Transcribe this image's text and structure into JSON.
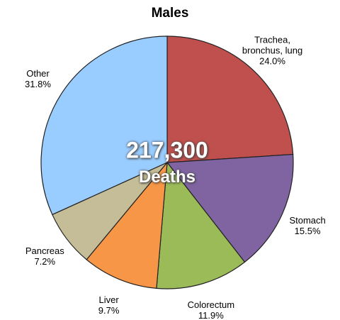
{
  "chart_data": {
    "type": "pie",
    "title": "Males",
    "categories": [
      "Trachea, bronchus, lung",
      "Stomach",
      "Colorectum",
      "Liver",
      "Pancreas",
      "Other"
    ],
    "values": [
      24.0,
      15.5,
      11.9,
      9.7,
      7.2,
      31.8
    ],
    "value_labels": [
      "24.0%",
      "15.5%",
      "11.9%",
      "9.7%",
      "7.2%",
      "31.8%"
    ],
    "colors": [
      "#c0504d",
      "#8064a2",
      "#9bbb59",
      "#f79646",
      "#c4bd97",
      "#99ccff"
    ],
    "center_label": "217,300",
    "center_sublabel": "Deaths"
  }
}
